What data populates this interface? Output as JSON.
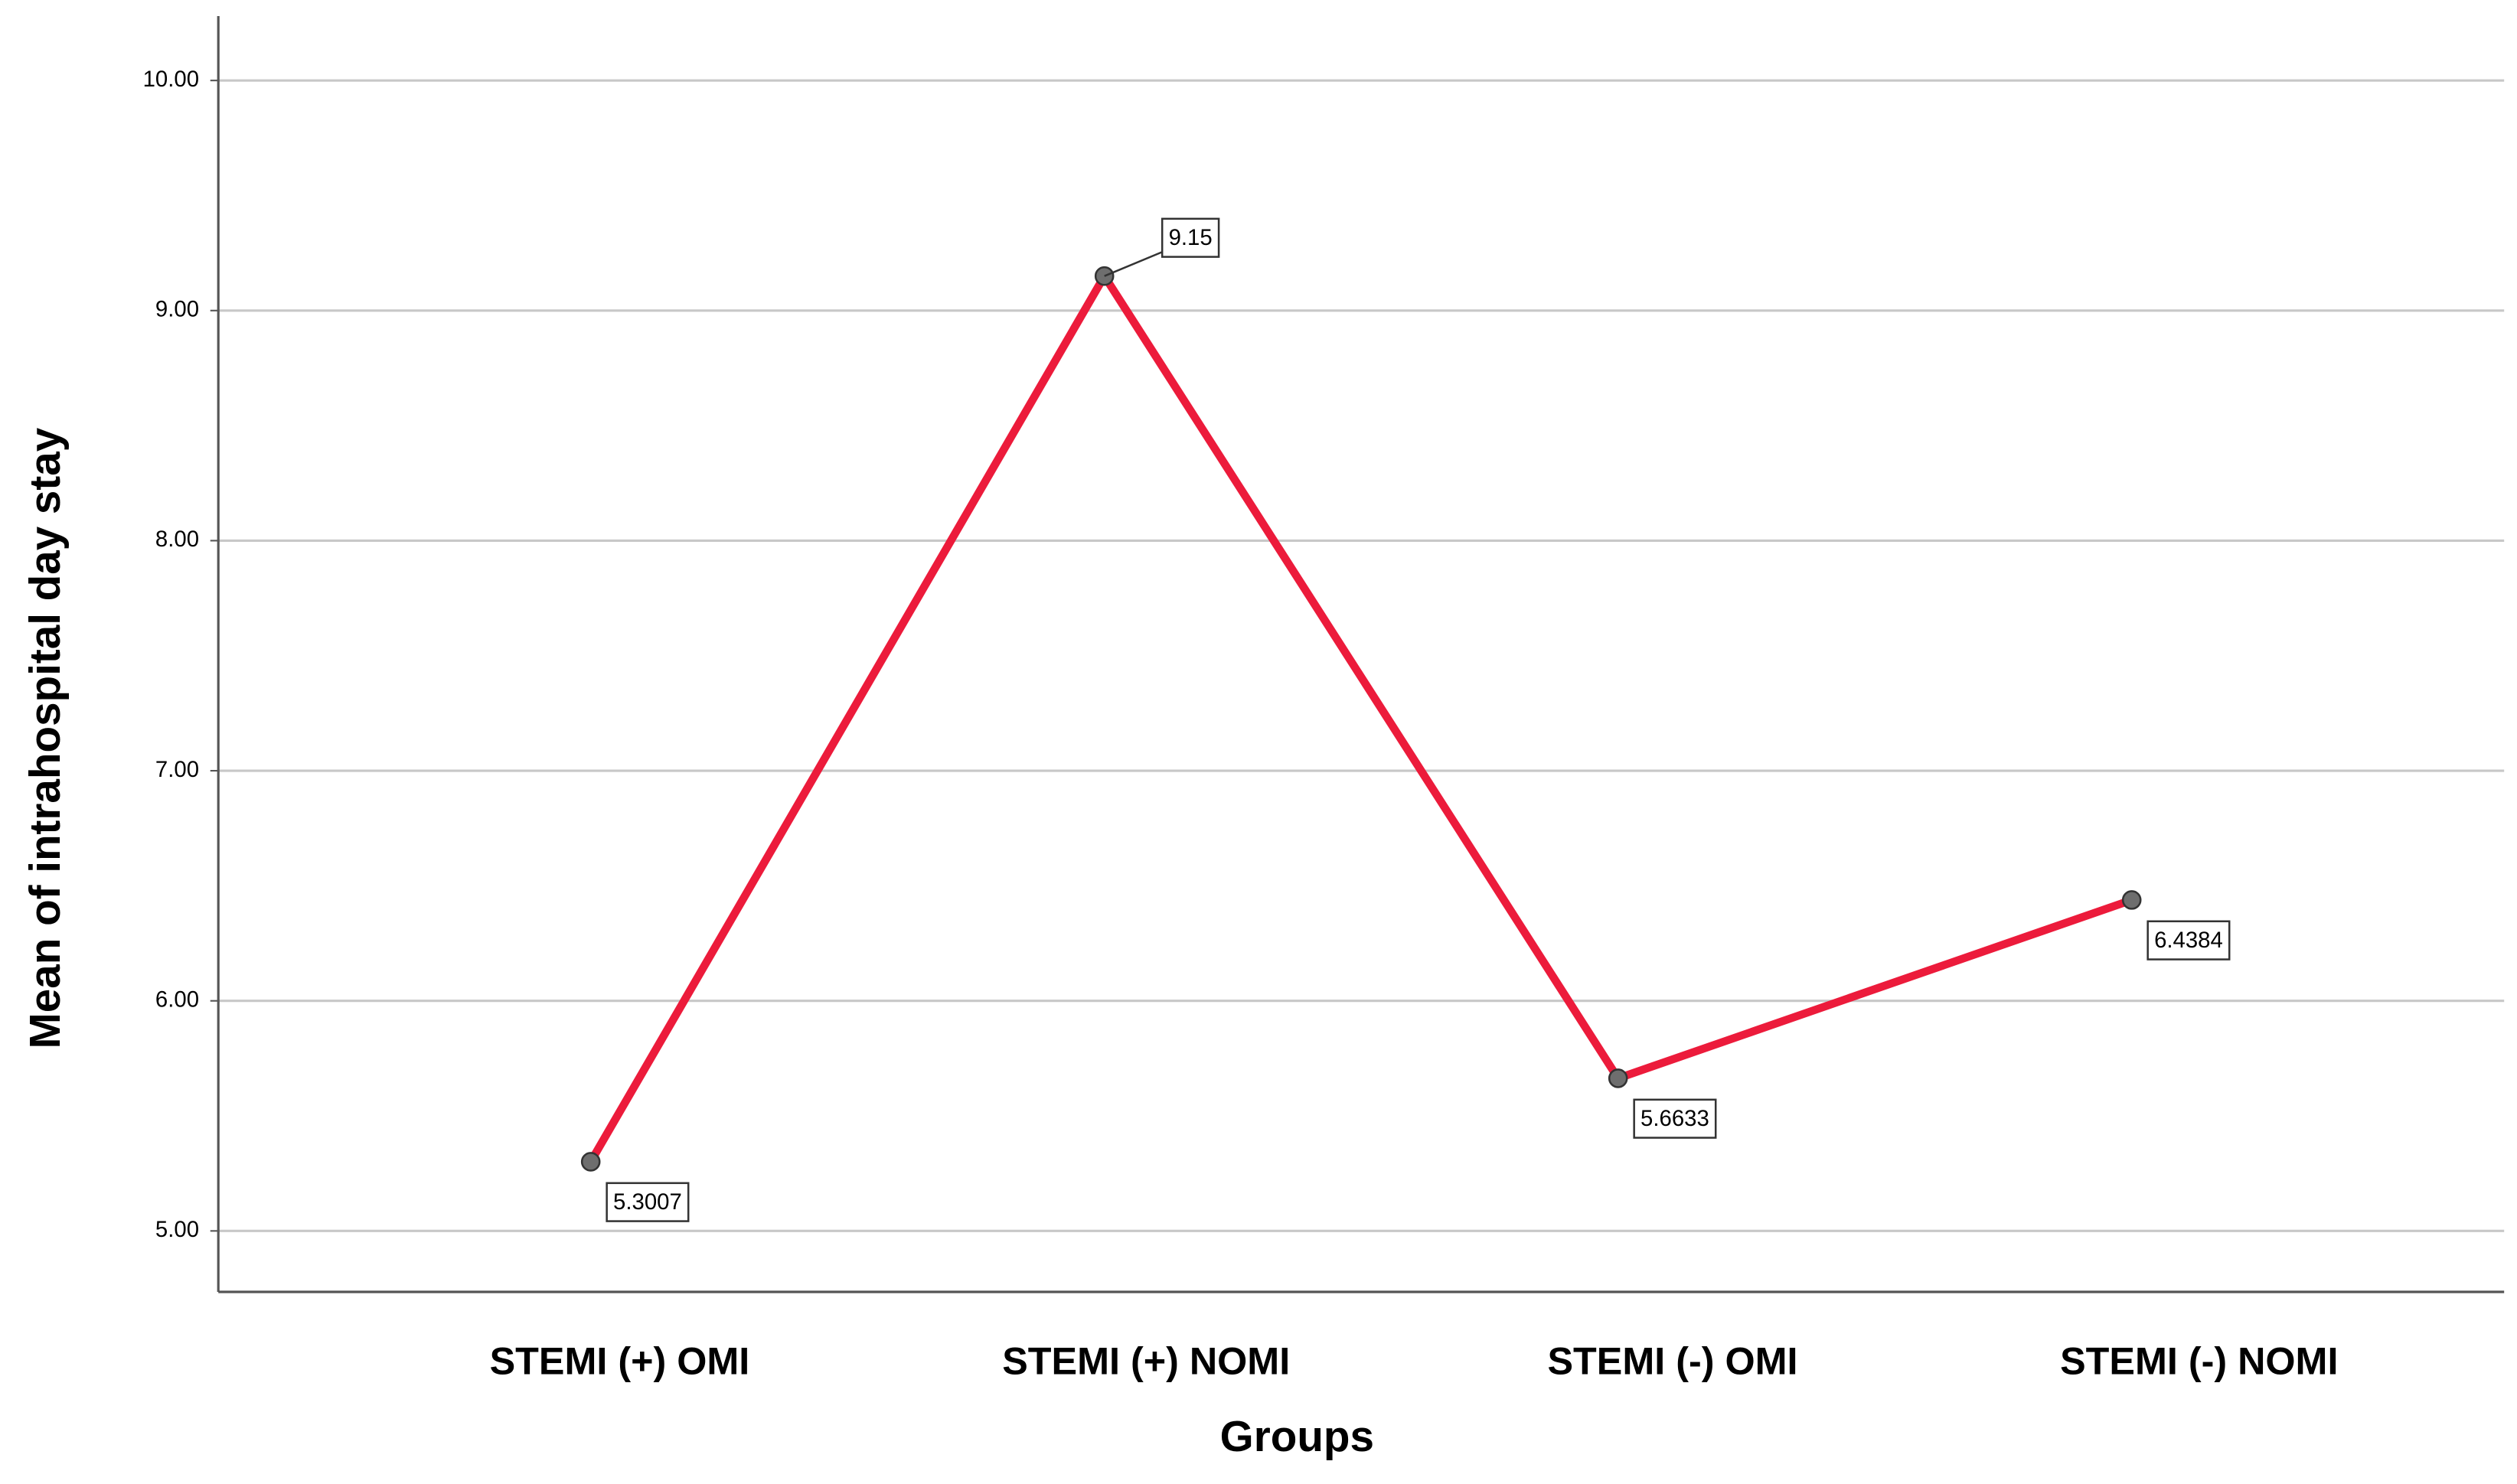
{
  "chart_data": {
    "type": "line",
    "x_label": "Groups",
    "y_label": "Mean of intrahospital day stay",
    "categories": [
      "STEMI (+) OMI",
      "STEMI (+) NOMI",
      "STEMI (-) OMI",
      "STEMI (-) NOMI"
    ],
    "series": [
      {
        "color": "#ec1b3b",
        "values": [
          5.3007,
          9.15,
          5.6633,
          6.4384
        ]
      }
    ],
    "ylim": [
      4.735,
      10.28
    ],
    "yticks": [
      {
        "value": 5,
        "label": "5.00"
      },
      {
        "value": 6,
        "label": "6.00"
      },
      {
        "value": 7,
        "label": "7.00"
      },
      {
        "value": 8,
        "label": "8.00"
      },
      {
        "value": 9,
        "label": "9.00"
      },
      {
        "value": 10,
        "label": "10.00"
      }
    ],
    "grid": true
  }
}
